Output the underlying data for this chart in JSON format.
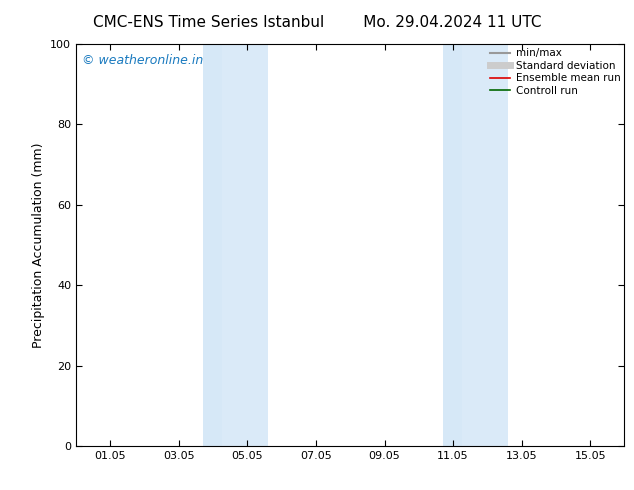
{
  "title_left": "CMC-ENS Time Series Istanbul",
  "title_right": "Mo. 29.04.2024 11 UTC",
  "ylabel": "Precipitation Accumulation (mm)",
  "xlim_start": 0,
  "xlim_end": 16,
  "ylim": [
    0,
    100
  ],
  "yticks": [
    0,
    20,
    40,
    60,
    80,
    100
  ],
  "xtick_labels": [
    "01.05",
    "03.05",
    "05.05",
    "07.05",
    "09.05",
    "11.05",
    "13.05",
    "15.05"
  ],
  "xtick_positions": [
    1,
    3,
    5,
    7,
    9,
    11,
    13,
    15
  ],
  "shaded_bands": [
    {
      "xmin": 3.7,
      "xmax": 4.25,
      "color": "#d6e8f7"
    },
    {
      "xmin": 4.25,
      "xmax": 5.6,
      "color": "#daeaf8"
    },
    {
      "xmin": 10.7,
      "xmax": 11.25,
      "color": "#d6e8f7"
    },
    {
      "xmin": 11.25,
      "xmax": 12.6,
      "color": "#daeaf8"
    }
  ],
  "watermark_text": "© weatheronline.in",
  "watermark_color": "#1a7abf",
  "legend_entries": [
    {
      "label": "min/max",
      "color": "#999999",
      "lw": 1.5
    },
    {
      "label": "Standard deviation",
      "color": "#cccccc",
      "lw": 5
    },
    {
      "label": "Ensemble mean run",
      "color": "#dd0000",
      "lw": 1.2
    },
    {
      "label": "Controll run",
      "color": "#006600",
      "lw": 1.2
    }
  ],
  "bg_color": "#ffffff",
  "title_fontsize": 11,
  "ylabel_fontsize": 9,
  "tick_fontsize": 8,
  "legend_fontsize": 7.5,
  "watermark_fontsize": 9
}
